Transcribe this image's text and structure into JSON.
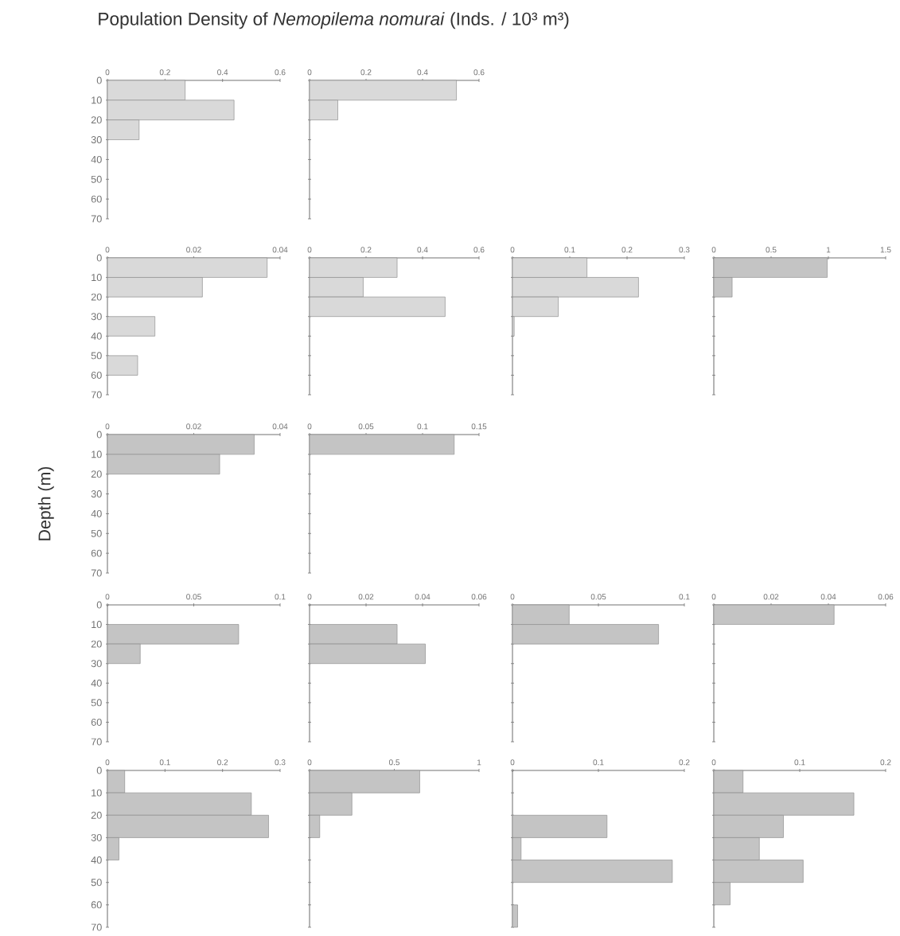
{
  "chart_data": [
    {
      "type": "histogram",
      "orientation": "horizontal",
      "title": "Population Density of *Nemopilema nomurai* (Inds. / 10³ m³)",
      "bins": [
        0,
        10,
        20,
        30,
        40,
        50,
        60,
        70
      ],
      "values": [
        0.27,
        0.44,
        0.11,
        0,
        0,
        0,
        0
      ],
      "color": "#d9d9d9",
      "xlim": [
        0,
        0.6
      ],
      "xticks": [
        0,
        0.2,
        0.4,
        0.6
      ],
      "ylim": [
        70,
        0
      ],
      "yticks": [
        0,
        10,
        20,
        30,
        40,
        50,
        60,
        70
      ]
    },
    {
      "type": "histogram",
      "orientation": "horizontal",
      "bins": [
        0,
        10,
        20,
        30,
        40,
        50,
        60,
        70
      ],
      "values": [
        0.52,
        0.1,
        0,
        0,
        0,
        0,
        0
      ],
      "color": "#d9d9d9",
      "xlim": [
        0,
        0.6
      ],
      "xticks": [
        0,
        0.2,
        0.4,
        0.6
      ],
      "ylim": [
        70,
        0
      ],
      "yticks": [
        0,
        10,
        20,
        30,
        40,
        50,
        60,
        70
      ],
      "tick_labels": "x"
    },
    {
      "type": "histogram",
      "orientation": "horizontal",
      "bins": [
        0,
        10,
        20,
        30,
        40,
        50,
        60,
        70
      ],
      "values": [
        0.037,
        0.022,
        0,
        0.011,
        0,
        0.007,
        0
      ],
      "color": "#d9d9d9",
      "xlim": [
        0,
        0.04
      ],
      "xticks": [
        0,
        0.02,
        0.04
      ],
      "ylim": [
        70,
        0
      ],
      "yticks": [
        0,
        10,
        20,
        30,
        40,
        50,
        60,
        70
      ]
    },
    {
      "type": "histogram",
      "orientation": "horizontal",
      "bins": [
        0,
        10,
        20,
        30,
        40,
        50,
        60,
        70
      ],
      "values": [
        0.31,
        0.19,
        0.48,
        0,
        0,
        0,
        0
      ],
      "color": "#d9d9d9",
      "xlim": [
        0,
        0.6
      ],
      "xticks": [
        0,
        0.2,
        0.4,
        0.6
      ],
      "ylim": [
        70,
        0
      ],
      "yticks": [
        0,
        10,
        20,
        30,
        40,
        50,
        60,
        70
      ],
      "tick_labels": "x"
    },
    {
      "type": "histogram",
      "orientation": "horizontal",
      "bins": [
        0,
        10,
        20,
        30,
        40,
        50,
        60,
        70
      ],
      "values": [
        0.13,
        0.22,
        0.08,
        0.003,
        0,
        0,
        0
      ],
      "color": "#d9d9d9",
      "xlim": [
        0,
        0.3
      ],
      "xticks": [
        0,
        0.1,
        0.2,
        0.3
      ],
      "ylim": [
        70,
        0
      ],
      "yticks": [
        0,
        10,
        20,
        30,
        40,
        50,
        60,
        70
      ],
      "tick_labels": "x"
    },
    {
      "type": "histogram",
      "orientation": "horizontal",
      "bins": [
        0,
        10,
        20,
        30,
        40,
        50,
        60,
        70
      ],
      "values": [
        0.99,
        0.16,
        0,
        0,
        0,
        0,
        0
      ],
      "color": "#c4c4c4",
      "xlim": [
        0,
        1.5
      ],
      "xticks": [
        0,
        0.5,
        1,
        1.5
      ],
      "ylim": [
        70,
        0
      ],
      "yticks": [
        0,
        10,
        20,
        30,
        40,
        50,
        60,
        70
      ],
      "tick_labels": "x"
    },
    {
      "type": "histogram",
      "orientation": "horizontal",
      "ylabel": "Depth (m)",
      "bins": [
        0,
        10,
        20,
        30,
        40,
        50,
        60,
        70
      ],
      "values": [
        0.034,
        0.026,
        0,
        0,
        0,
        0,
        0
      ],
      "color": "#c4c4c4",
      "xlim": [
        0,
        0.04
      ],
      "xticks": [
        0,
        0.02,
        0.04
      ],
      "ylim": [
        70,
        0
      ],
      "yticks": [
        0,
        10,
        20,
        30,
        40,
        50,
        60,
        70
      ]
    },
    {
      "type": "histogram",
      "orientation": "horizontal",
      "bins": [
        0,
        10,
        20,
        30,
        40,
        50,
        60,
        70
      ],
      "values": [
        0.128,
        0,
        0,
        0,
        0,
        0,
        0
      ],
      "color": "#c4c4c4",
      "xlim": [
        0,
        0.15
      ],
      "xticks": [
        0,
        0.05,
        0.1,
        0.15
      ],
      "ylim": [
        70,
        0
      ],
      "yticks": [
        0,
        10,
        20,
        30,
        40,
        50,
        60,
        70
      ],
      "tick_labels": "x"
    },
    {
      "type": "histogram",
      "orientation": "horizontal",
      "bins": [
        0,
        10,
        20,
        30,
        40,
        50,
        60,
        70
      ],
      "values": [
        0,
        0.076,
        0.019,
        0,
        0,
        0,
        0
      ],
      "color": "#c4c4c4",
      "xlim": [
        0,
        0.1
      ],
      "xticks": [
        0,
        0.05,
        0.1
      ],
      "ylim": [
        70,
        0
      ],
      "yticks": [
        0,
        10,
        20,
        30,
        40,
        50,
        60,
        70
      ]
    },
    {
      "type": "histogram",
      "orientation": "horizontal",
      "bins": [
        0,
        10,
        20,
        30,
        40,
        50,
        60,
        70
      ],
      "values": [
        0,
        0.031,
        0.041,
        0,
        0,
        0,
        0
      ],
      "color": "#c4c4c4",
      "xlim": [
        0,
        0.06
      ],
      "xticks": [
        0,
        0.02,
        0.04,
        0.06
      ],
      "ylim": [
        70,
        0
      ],
      "yticks": [
        0,
        10,
        20,
        30,
        40,
        50,
        60,
        70
      ],
      "tick_labels": "x"
    },
    {
      "type": "histogram",
      "orientation": "horizontal",
      "bins": [
        0,
        10,
        20,
        30,
        40,
        50,
        60,
        70
      ],
      "values": [
        0.033,
        0.085,
        0,
        0,
        0,
        0,
        0
      ],
      "color": "#c4c4c4",
      "xlim": [
        0,
        0.1
      ],
      "xticks": [
        0,
        0.05,
        0.1
      ],
      "ylim": [
        70,
        0
      ],
      "yticks": [
        0,
        10,
        20,
        30,
        40,
        50,
        60,
        70
      ],
      "tick_labels": "x"
    },
    {
      "type": "histogram",
      "orientation": "horizontal",
      "bins": [
        0,
        10,
        20,
        30,
        40,
        50,
        60,
        70
      ],
      "values": [
        0.042,
        0,
        0,
        0,
        0,
        0,
        0
      ],
      "color": "#c4c4c4",
      "xlim": [
        0,
        0.06
      ],
      "xticks": [
        0,
        0.02,
        0.04,
        0.06
      ],
      "ylim": [
        70,
        0
      ],
      "yticks": [
        0,
        10,
        20,
        30,
        40,
        50,
        60,
        70
      ],
      "tick_labels": "x"
    },
    {
      "type": "histogram",
      "orientation": "horizontal",
      "bins": [
        0,
        10,
        20,
        30,
        40,
        50,
        60,
        70
      ],
      "values": [
        0.03,
        0.25,
        0.28,
        0.02,
        0,
        0,
        0
      ],
      "color": "#c4c4c4",
      "xlim": [
        0,
        0.3
      ],
      "xticks": [
        0,
        0.1,
        0.2,
        0.3
      ],
      "ylim": [
        70,
        0
      ],
      "yticks": [
        0,
        10,
        20,
        30,
        40,
        50,
        60,
        70
      ]
    },
    {
      "type": "histogram",
      "orientation": "horizontal",
      "bins": [
        0,
        10,
        20,
        30,
        40,
        50,
        60,
        70
      ],
      "values": [
        0.65,
        0.25,
        0.06,
        0,
        0,
        0,
        0
      ],
      "color": "#c4c4c4",
      "xlim": [
        0,
        1
      ],
      "xticks": [
        0,
        0.5,
        1
      ],
      "ylim": [
        70,
        0
      ],
      "yticks": [
        0,
        10,
        20,
        30,
        40,
        50,
        60,
        70
      ],
      "tick_labels": "x"
    },
    {
      "type": "histogram",
      "orientation": "horizontal",
      "bins": [
        0,
        10,
        20,
        30,
        40,
        50,
        60,
        70
      ],
      "values": [
        0,
        0,
        0.11,
        0.01,
        0.186,
        0,
        0.006
      ],
      "color": "#c4c4c4",
      "xlim": [
        0,
        0.2
      ],
      "xticks": [
        0,
        0.1,
        0.2
      ],
      "ylim": [
        70,
        0
      ],
      "yticks": [
        0,
        10,
        20,
        30,
        40,
        50,
        60,
        70
      ],
      "tick_labels": "x"
    },
    {
      "type": "histogram",
      "orientation": "horizontal",
      "bins": [
        0,
        10,
        20,
        30,
        40,
        50,
        60,
        70
      ],
      "values": [
        0.034,
        0.163,
        0.081,
        0.053,
        0.104,
        0.019,
        0
      ],
      "color": "#c4c4c4",
      "xlim": [
        0,
        0.2
      ],
      "xticks": [
        0,
        0.1,
        0.2
      ],
      "ylim": [
        70,
        0
      ],
      "yticks": [
        0,
        10,
        20,
        30,
        40,
        50,
        60,
        70
      ],
      "tick_labels": "x"
    }
  ]
}
